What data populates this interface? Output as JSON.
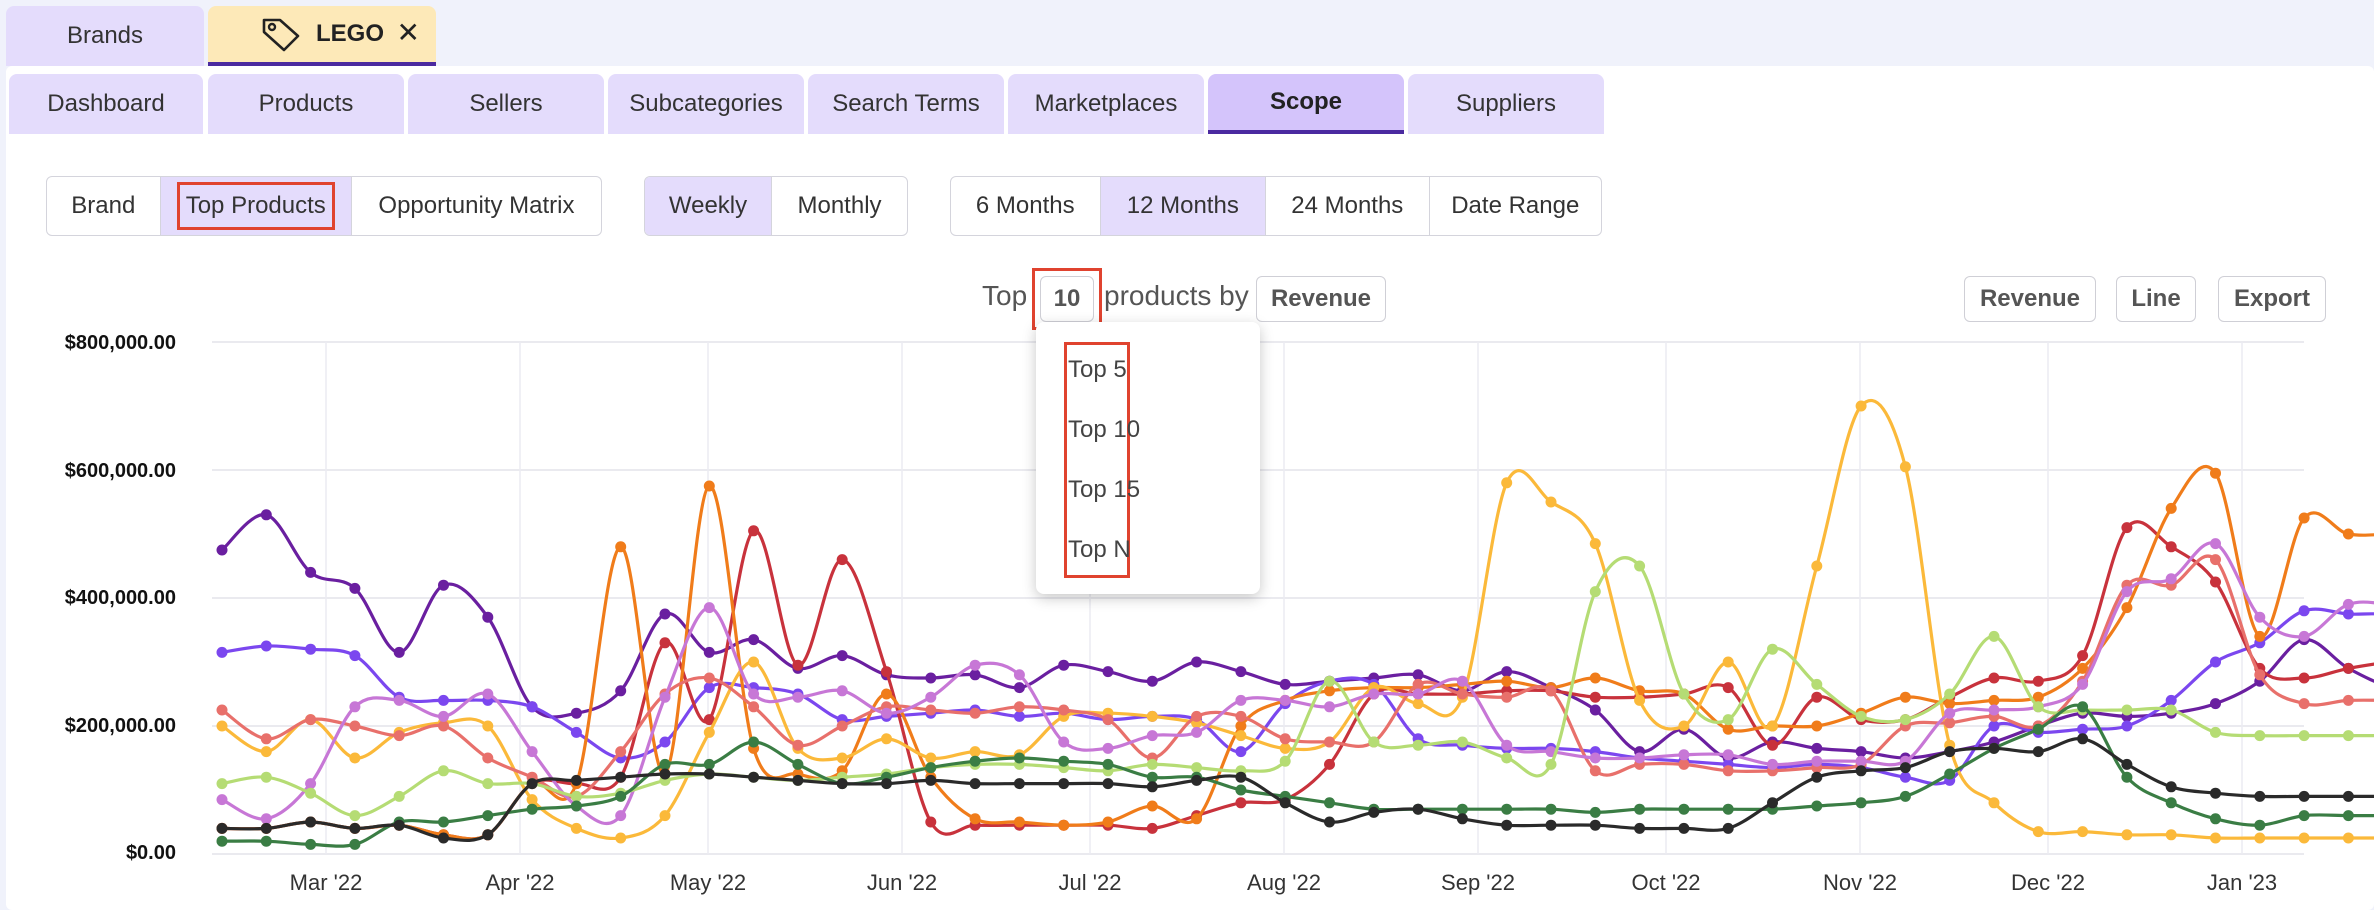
{
  "brand_tabs": [
    {
      "label": "Brands",
      "active": false
    },
    {
      "label": "LEGO",
      "active": true,
      "icon": "tag-icon",
      "closable": true
    }
  ],
  "nav_tabs": [
    "Dashboard",
    "Products",
    "Sellers",
    "Subcategories",
    "Search Terms",
    "Marketplaces",
    "Scope",
    "Suppliers"
  ],
  "nav_active": "Scope",
  "view_segment": {
    "items": [
      "Brand",
      "Top Products",
      "Opportunity Matrix"
    ],
    "selected": "Top Products"
  },
  "interval_segment": {
    "items": [
      "Weekly",
      "Monthly"
    ],
    "selected": "Weekly"
  },
  "range_segment": {
    "items": [
      "6 Months",
      "12 Months",
      "24 Months",
      "Date Range"
    ],
    "selected": "12 Months"
  },
  "top_control": {
    "prefix": "Top",
    "count_value": "10",
    "middle": "products by",
    "metric": "Revenue"
  },
  "dropdown_options": [
    "Top 5",
    "Top 10",
    "Top 15",
    "Top N"
  ],
  "right_buttons": [
    "Revenue",
    "Line",
    "Export"
  ],
  "colors": {
    "accent": "#4b2aa0",
    "tab": "#e4dcfc",
    "tab_active": "#d4c4fb",
    "brand_tab_active": "#fde9b8",
    "highlight": "#e0432f"
  },
  "chart_data": {
    "type": "line",
    "yticks": [
      "$0.00",
      "$200,000.00",
      "$400,000.00",
      "$600,000.00",
      "$800,000.00"
    ],
    "ylim": [
      0,
      800000
    ],
    "xticks": [
      "Mar '22",
      "Apr '22",
      "May '22",
      "Jun '22",
      "Jul '22",
      "Aug '22",
      "Sep '22",
      "Oct '22",
      "Nov '22",
      "Dec '22",
      "Jan '23"
    ],
    "x_start": "2022-02-14",
    "x_step_days": 7,
    "grid": true,
    "legend": "none",
    "series": [
      {
        "color": "#6a1fa0",
        "values": [
          475000,
          530000,
          440000,
          415000,
          315000,
          420000,
          370000,
          230000,
          220000,
          255000,
          375000,
          315000,
          335000,
          290000,
          310000,
          280000,
          275000,
          280000,
          260000,
          295000,
          285000,
          270000,
          300000,
          285000,
          265000,
          270000,
          275000,
          280000,
          255000,
          285000,
          260000,
          225000,
          160000,
          195000,
          150000,
          175000,
          165000,
          160000,
          150000,
          160000,
          175000,
          200000,
          220000,
          215000,
          220000,
          235000,
          270000,
          335000,
          290000,
          260000,
          255000,
          255000
        ]
      },
      {
        "color": "#7b47ef",
        "values": [
          315000,
          325000,
          320000,
          310000,
          245000,
          240000,
          240000,
          230000,
          190000,
          150000,
          175000,
          260000,
          260000,
          250000,
          210000,
          215000,
          220000,
          225000,
          215000,
          220000,
          210000,
          215000,
          210000,
          160000,
          235000,
          270000,
          265000,
          180000,
          170000,
          165000,
          165000,
          160000,
          150000,
          145000,
          140000,
          135000,
          140000,
          135000,
          120000,
          115000,
          200000,
          190000,
          195000,
          200000,
          240000,
          300000,
          330000,
          380000,
          375000,
          370000,
          320000,
          300000
        ]
      },
      {
        "color": "#c8323c",
        "values": [
          40000,
          40000,
          50000,
          40000,
          45000,
          30000,
          30000,
          110000,
          110000,
          120000,
          330000,
          210000,
          505000,
          295000,
          460000,
          285000,
          50000,
          45000,
          45000,
          45000,
          45000,
          40000,
          60000,
          80000,
          85000,
          140000,
          250000,
          250000,
          250000,
          255000,
          255000,
          245000,
          245000,
          250000,
          260000,
          170000,
          245000,
          210000,
          210000,
          245000,
          275000,
          270000,
          310000,
          510000,
          480000,
          425000,
          290000,
          275000,
          290000,
          300000,
          300000,
          300000
        ]
      },
      {
        "color": "#f07c1a",
        "values": [
          40000,
          40000,
          50000,
          40000,
          45000,
          30000,
          30000,
          110000,
          110000,
          480000,
          125000,
          575000,
          165000,
          125000,
          130000,
          250000,
          120000,
          55000,
          50000,
          45000,
          50000,
          75000,
          55000,
          200000,
          240000,
          255000,
          260000,
          260000,
          265000,
          270000,
          260000,
          275000,
          255000,
          250000,
          195000,
          200000,
          200000,
          220000,
          245000,
          235000,
          240000,
          245000,
          290000,
          385000,
          540000,
          595000,
          340000,
          525000,
          500000,
          500000,
          500000,
          500000
        ]
      },
      {
        "color": "#fbb93a",
        "values": [
          200000,
          160000,
          210000,
          150000,
          190000,
          205000,
          200000,
          85000,
          40000,
          25000,
          60000,
          190000,
          300000,
          165000,
          150000,
          180000,
          150000,
          160000,
          155000,
          215000,
          220000,
          215000,
          205000,
          185000,
          165000,
          175000,
          260000,
          235000,
          245000,
          580000,
          550000,
          485000,
          240000,
          200000,
          300000,
          200000,
          450000,
          700000,
          605000,
          170000,
          80000,
          35000,
          35000,
          30000,
          30000,
          25000,
          25000,
          25000,
          25000,
          25000,
          25000,
          25000
        ]
      },
      {
        "color": "#e8706b",
        "values": [
          225000,
          180000,
          210000,
          200000,
          185000,
          200000,
          150000,
          120000,
          90000,
          160000,
          250000,
          275000,
          230000,
          170000,
          200000,
          230000,
          225000,
          220000,
          230000,
          225000,
          210000,
          150000,
          215000,
          215000,
          180000,
          175000,
          175000,
          265000,
          250000,
          245000,
          255000,
          130000,
          140000,
          140000,
          130000,
          130000,
          135000,
          140000,
          200000,
          205000,
          215000,
          200000,
          270000,
          420000,
          420000,
          460000,
          280000,
          235000,
          240000,
          240000,
          240000,
          240000
        ]
      },
      {
        "color": "#c777d6",
        "values": [
          85000,
          55000,
          110000,
          230000,
          240000,
          215000,
          250000,
          160000,
          75000,
          60000,
          245000,
          385000,
          250000,
          245000,
          255000,
          220000,
          245000,
          295000,
          280000,
          175000,
          165000,
          185000,
          190000,
          240000,
          240000,
          230000,
          250000,
          250000,
          270000,
          170000,
          160000,
          150000,
          150000,
          155000,
          155000,
          140000,
          145000,
          145000,
          145000,
          220000,
          225000,
          230000,
          265000,
          410000,
          430000,
          485000,
          370000,
          340000,
          390000,
          390000,
          390000,
          390000
        ]
      },
      {
        "color": "#b5dc74",
        "values": [
          110000,
          120000,
          95000,
          60000,
          90000,
          130000,
          110000,
          110000,
          90000,
          95000,
          115000,
          125000,
          120000,
          115000,
          120000,
          125000,
          135000,
          140000,
          140000,
          135000,
          130000,
          140000,
          135000,
          130000,
          145000,
          270000,
          175000,
          170000,
          175000,
          150000,
          140000,
          410000,
          450000,
          250000,
          210000,
          320000,
          265000,
          215000,
          210000,
          250000,
          340000,
          230000,
          225000,
          225000,
          225000,
          190000,
          185000,
          185000,
          185000,
          185000,
          185000,
          185000
        ]
      },
      {
        "color": "#3a7d44",
        "values": [
          20000,
          20000,
          15000,
          15000,
          50000,
          50000,
          60000,
          70000,
          75000,
          90000,
          140000,
          140000,
          175000,
          140000,
          110000,
          120000,
          135000,
          145000,
          150000,
          145000,
          140000,
          120000,
          120000,
          100000,
          90000,
          80000,
          70000,
          70000,
          70000,
          70000,
          70000,
          65000,
          70000,
          70000,
          70000,
          70000,
          75000,
          80000,
          90000,
          125000,
          165000,
          195000,
          230000,
          120000,
          80000,
          55000,
          45000,
          60000,
          60000,
          60000,
          60000,
          60000
        ]
      },
      {
        "color": "#2a2a2a",
        "values": [
          40000,
          40000,
          50000,
          40000,
          45000,
          25000,
          30000,
          110000,
          115000,
          120000,
          125000,
          125000,
          120000,
          115000,
          110000,
          110000,
          115000,
          110000,
          110000,
          110000,
          110000,
          105000,
          115000,
          120000,
          80000,
          50000,
          65000,
          70000,
          55000,
          45000,
          45000,
          45000,
          40000,
          40000,
          40000,
          80000,
          120000,
          130000,
          135000,
          160000,
          165000,
          160000,
          180000,
          140000,
          105000,
          95000,
          90000,
          90000,
          90000,
          90000,
          90000,
          90000
        ]
      }
    ]
  }
}
